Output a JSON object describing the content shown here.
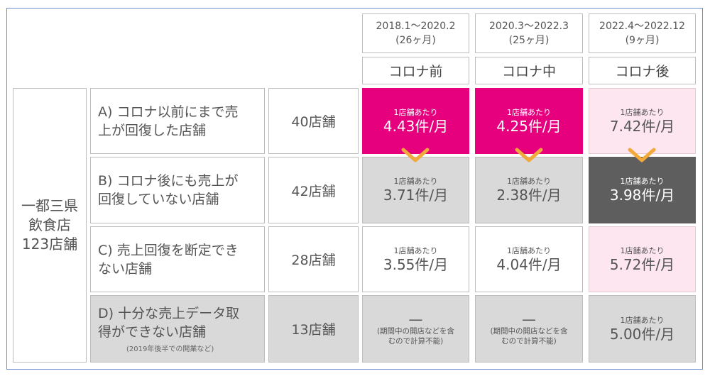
{
  "periods": [
    {
      "range": "2018.1〜2020.2",
      "months": "(26ヶ月)",
      "phase": "コロナ前"
    },
    {
      "range": "2020.3〜2022.3",
      "months": "(25ヶ月)",
      "phase": "コロナ中"
    },
    {
      "range": "2022.4〜2022.12",
      "months": "(9ヶ月)",
      "phase": "コロナ後"
    }
  ],
  "group_label": [
    "一都三県",
    "飲食店",
    "123店舗"
  ],
  "rows": [
    {
      "label": [
        "A) コロナ以前にまで売",
        "上が回復した店舗"
      ],
      "note": "",
      "count": "40店舗",
      "cells": [
        {
          "small": "1店舗あたり",
          "big": "4.43件/月"
        },
        {
          "small": "1店舗あたり",
          "big": "4.25件/月"
        },
        {
          "small": "1店舗あたり",
          "big": "7.42件/月"
        }
      ]
    },
    {
      "label": [
        "B) コロナ後にも売上が",
        "回復していない店舗"
      ],
      "note": "",
      "count": "42店舗",
      "cells": [
        {
          "small": "1店舗あたり",
          "big": "3.71件/月"
        },
        {
          "small": "1店舗あたり",
          "big": "2.38件/月"
        },
        {
          "small": "1店舗あたり",
          "big": "3.98件/月"
        }
      ]
    },
    {
      "label": [
        "C) 売上回復を断定でき",
        "ない店舗"
      ],
      "note": "",
      "count": "28店舗",
      "cells": [
        {
          "small": "1店舗あたり",
          "big": "3.55件/月"
        },
        {
          "small": "1店舗あたり",
          "big": "4.04件/月"
        },
        {
          "small": "1店舗あたり",
          "big": "5.72件/月"
        }
      ]
    },
    {
      "label": [
        "D) 十分な売上データ取",
        "得ができない店舗"
      ],
      "note": "(2019年後半での開業など)",
      "count": "13店舗",
      "cells": [
        {
          "dash": "—",
          "na": [
            "(期間中の開店などを含",
            "むので計算不能)"
          ]
        },
        {
          "dash": "—",
          "na": [
            "(期間中の開店などを含",
            "むので計算不能)"
          ]
        },
        {
          "small": "1店舗あたり",
          "big": "5.00件/月"
        }
      ]
    }
  ],
  "colors": {
    "highlight": "#e6007e",
    "light_highlight": "#fde6ef",
    "dark": "#5e5e5e",
    "gray": "#d9d9d9",
    "chevron": "#f2a93b",
    "frame": "#6a8fd0"
  },
  "icons": [
    "chevron-down-icon"
  ]
}
